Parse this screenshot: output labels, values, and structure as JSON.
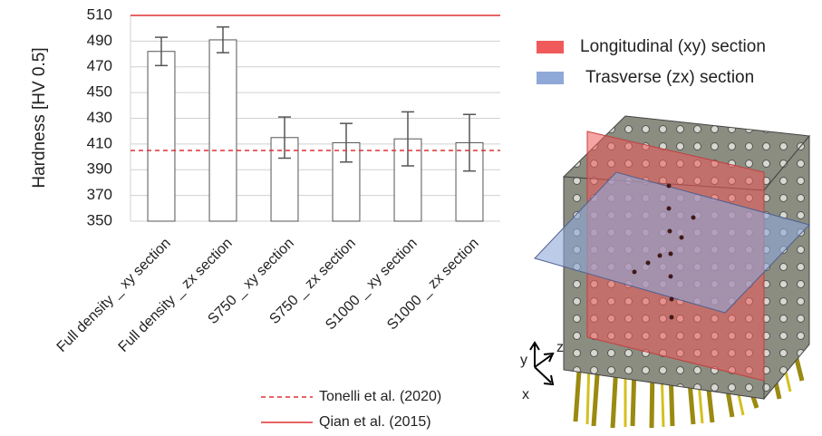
{
  "chart_data": {
    "type": "bar",
    "y_label": "Hardness [HV 0.5]",
    "categories": [
      "Full density _ xy section",
      "Full density _ zx section",
      "S750 _ xy section",
      "S750 _ zx section",
      "S1000 _ xy section",
      "S1000 _ zx section"
    ],
    "values": [
      482,
      491,
      415,
      411,
      414,
      411
    ],
    "errors": [
      11,
      10,
      16,
      15,
      21,
      22
    ],
    "color": "#ffffff",
    "edge_color": "#555555",
    "error_color": "#555555",
    "ylim": [
      350,
      510
    ],
    "yticks": [
      350,
      370,
      390,
      410,
      430,
      450,
      470,
      490,
      510
    ],
    "grid": true,
    "reference_lines": [
      {
        "name": "Tonelli et al. (2020)",
        "value": 405,
        "color": "#e03030",
        "style": "dashed"
      },
      {
        "name": "Qian et al. (2015)",
        "value": 510,
        "color": "#e03030",
        "style": "solid"
      }
    ],
    "sections": [
      {
        "name": "Longitudinal (xy) section",
        "color": "#f05a5a"
      },
      {
        "name": "Trasverse (zx) section",
        "color": "#8fa8d8"
      }
    ]
  },
  "illustration": {
    "axis_labels": [
      "y",
      "z",
      "x"
    ]
  }
}
